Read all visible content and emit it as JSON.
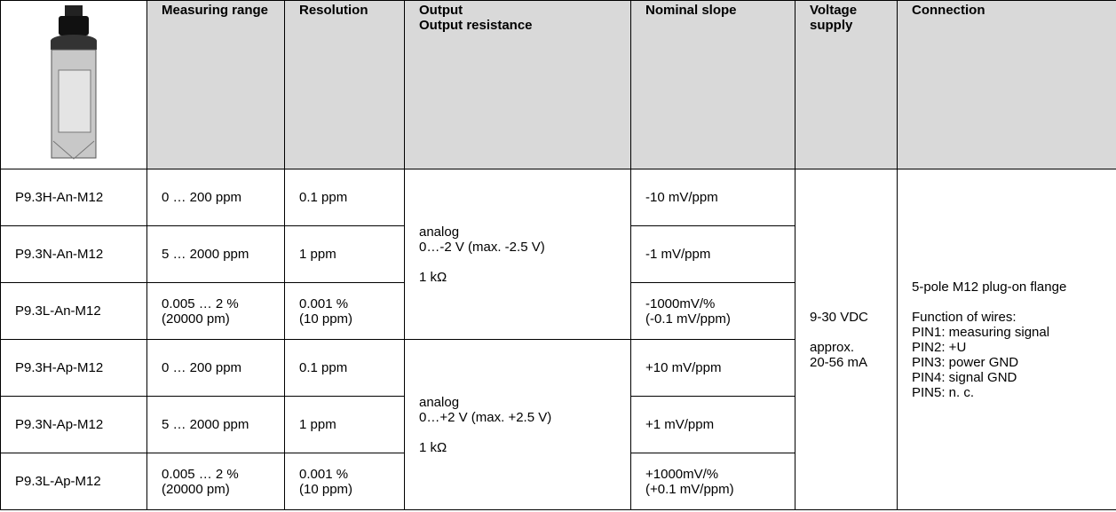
{
  "table": {
    "headers": [
      {
        "lines": [
          "Measuring range"
        ]
      },
      {
        "lines": [
          "Resolution"
        ]
      },
      {
        "lines": [
          "Output",
          "Output resistance"
        ]
      },
      {
        "lines": [
          "Nominal slope"
        ]
      },
      {
        "lines": [
          "Voltage supply"
        ]
      },
      {
        "lines": [
          "Connection"
        ]
      }
    ],
    "rows": [
      {
        "model": "P9.3H-An-M12",
        "range": [
          "0 … 200 ppm"
        ],
        "resolution": [
          "0.1 ppm"
        ],
        "slope": [
          "-10 mV/ppm"
        ]
      },
      {
        "model": "P9.3N-An-M12",
        "range": [
          "5 … 2000 ppm"
        ],
        "resolution": [
          "1 ppm"
        ],
        "slope": [
          "-1 mV/ppm"
        ]
      },
      {
        "model": "P9.3L-An-M12",
        "range": [
          "0.005 … 2 %",
          "(20000 pm)"
        ],
        "resolution": [
          "0.001 %",
          "(10 ppm)"
        ],
        "slope": [
          "-1000mV/%",
          "(-0.1 mV/ppm)"
        ]
      },
      {
        "model": "P9.3H-Ap-M12",
        "range": [
          "0 … 200 ppm"
        ],
        "resolution": [
          "0.1 ppm"
        ],
        "slope": [
          "+10 mV/ppm"
        ]
      },
      {
        "model": "P9.3N-Ap-M12",
        "range": [
          "5 … 2000 ppm"
        ],
        "resolution": [
          "1 ppm"
        ],
        "slope": [
          "+1 mV/ppm"
        ]
      },
      {
        "model": "P9.3L-Ap-M12",
        "range": [
          "0.005 … 2 %",
          "(20000 pm)"
        ],
        "resolution": [
          "0.001 %",
          "(10 ppm)"
        ],
        "slope": [
          "+1000mV/%",
          "(+0.1 mV/ppm)"
        ]
      }
    ],
    "outputs": [
      {
        "kind": "analog",
        "range": "0…-2 V (max. -2.5 V)",
        "resistance": "1 kΩ"
      },
      {
        "kind": "analog",
        "range": "0…+2 V (max. +2.5 V)",
        "resistance": "1 kΩ"
      }
    ],
    "supply": {
      "voltage": "9-30 VDC",
      "current": [
        "approx.",
        "20-56 mA"
      ]
    },
    "connection": {
      "plug": "5-pole M12 plug-on flange",
      "wires_title": "Function of wires:",
      "wires": [
        "PIN1: measuring signal",
        "PIN2: +U",
        "PIN3: power GND",
        "PIN4: signal GND",
        "PIN5: n. c."
      ]
    }
  }
}
